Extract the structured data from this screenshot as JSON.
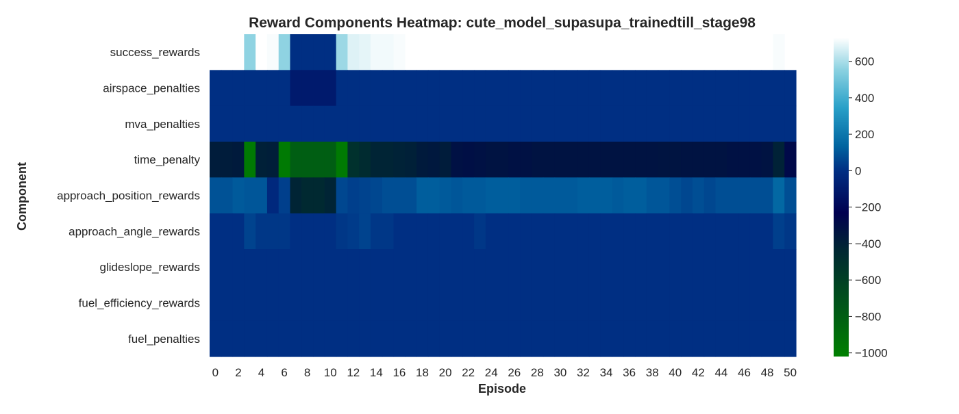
{
  "chart_data": {
    "type": "heatmap",
    "title": "Reward Components Heatmap: cute_model_supasupa_trainedtill_stage98",
    "xlabel": "Episode",
    "ylabel": "Component",
    "rows": [
      "success_rewards",
      "airspace_penalties",
      "mva_penalties",
      "time_penalty",
      "approach_position_rewards",
      "approach_angle_rewards",
      "glideslope_rewards",
      "fuel_efficiency_rewards",
      "fuel_penalties"
    ],
    "x_ticks": [
      "0",
      "2",
      "4",
      "6",
      "8",
      "10",
      "12",
      "14",
      "16",
      "18",
      "20",
      "22",
      "24",
      "26",
      "28",
      "30",
      "32",
      "34",
      "36",
      "38",
      "40",
      "42",
      "44",
      "46",
      "48",
      "50"
    ],
    "episodes": [
      0,
      1,
      2,
      3,
      4,
      5,
      6,
      7,
      8,
      9,
      10,
      11,
      12,
      13,
      14,
      15,
      16,
      17,
      18,
      19,
      20,
      21,
      22,
      23,
      24,
      25,
      26,
      27,
      28,
      29,
      30,
      31,
      32,
      33,
      34,
      35,
      36,
      37,
      38,
      39,
      40,
      41,
      42,
      43,
      44,
      45,
      46,
      47,
      48,
      49,
      50
    ],
    "values": [
      [
        null,
        null,
        null,
        560,
        730,
        720,
        560,
        0,
        0,
        0,
        0,
        580,
        680,
        690,
        710,
        710,
        720,
        730,
        730,
        735,
        735,
        null,
        null,
        null,
        null,
        null,
        null,
        null,
        null,
        null,
        null,
        null,
        null,
        null,
        null,
        null,
        null,
        null,
        null,
        null,
        null,
        null,
        null,
        null,
        null,
        null,
        null,
        null,
        null,
        720,
        null
      ],
      [
        0,
        0,
        0,
        0,
        0,
        0,
        0,
        -100,
        -100,
        -100,
        -100,
        0,
        0,
        0,
        0,
        0,
        0,
        0,
        0,
        0,
        0,
        0,
        0,
        0,
        0,
        0,
        0,
        0,
        0,
        0,
        0,
        0,
        0,
        0,
        0,
        0,
        0,
        0,
        0,
        0,
        0,
        0,
        0,
        0,
        0,
        0,
        0,
        0,
        0,
        0,
        0
      ],
      [
        0,
        0,
        0,
        0,
        0,
        0,
        0,
        0,
        0,
        0,
        0,
        0,
        0,
        0,
        0,
        0,
        0,
        0,
        0,
        0,
        0,
        0,
        0,
        0,
        0,
        0,
        0,
        0,
        0,
        0,
        0,
        0,
        0,
        0,
        0,
        0,
        0,
        0,
        0,
        0,
        0,
        0,
        0,
        0,
        0,
        0,
        0,
        0,
        0,
        0,
        0
      ],
      [
        -380,
        -380,
        -370,
        -980,
        -400,
        -390,
        -980,
        -800,
        -800,
        -800,
        -800,
        -980,
        -500,
        -460,
        -420,
        -420,
        -410,
        -400,
        -370,
        -360,
        -380,
        -320,
        -310,
        -320,
        -330,
        -330,
        -320,
        -320,
        -330,
        -330,
        -330,
        -330,
        -330,
        -330,
        -330,
        -330,
        -330,
        -330,
        -330,
        -340,
        -340,
        -330,
        -330,
        -330,
        -330,
        -320,
        -320,
        -320,
        -330,
        -410,
        -280
      ],
      [
        90,
        90,
        110,
        100,
        100,
        -30,
        40,
        -420,
        -450,
        -450,
        -420,
        60,
        40,
        50,
        60,
        80,
        80,
        80,
        120,
        120,
        110,
        100,
        110,
        110,
        120,
        120,
        120,
        110,
        110,
        110,
        110,
        110,
        120,
        120,
        120,
        110,
        120,
        120,
        100,
        100,
        80,
        60,
        80,
        60,
        80,
        80,
        80,
        80,
        80,
        150,
        80
      ],
      [
        0,
        0,
        0,
        50,
        20,
        20,
        20,
        0,
        0,
        0,
        0,
        20,
        30,
        50,
        20,
        20,
        0,
        0,
        0,
        0,
        0,
        0,
        0,
        20,
        0,
        0,
        0,
        0,
        0,
        0,
        0,
        0,
        0,
        0,
        0,
        0,
        0,
        0,
        0,
        0,
        0,
        0,
        0,
        0,
        0,
        0,
        0,
        0,
        0,
        40,
        20
      ],
      [
        0,
        0,
        0,
        0,
        0,
        0,
        0,
        0,
        0,
        0,
        0,
        0,
        0,
        0,
        0,
        0,
        0,
        0,
        0,
        0,
        0,
        0,
        0,
        0,
        0,
        0,
        0,
        0,
        0,
        0,
        0,
        0,
        0,
        0,
        0,
        0,
        0,
        0,
        0,
        0,
        0,
        0,
        0,
        0,
        0,
        0,
        0,
        0,
        0,
        0,
        0
      ],
      [
        0,
        0,
        0,
        0,
        0,
        0,
        0,
        0,
        0,
        0,
        0,
        0,
        0,
        0,
        0,
        0,
        0,
        0,
        0,
        0,
        0,
        0,
        0,
        0,
        0,
        0,
        0,
        0,
        0,
        0,
        0,
        0,
        0,
        0,
        0,
        0,
        0,
        0,
        0,
        0,
        0,
        0,
        0,
        0,
        0,
        0,
        0,
        0,
        0,
        0,
        0
      ],
      [
        0,
        0,
        0,
        0,
        0,
        0,
        0,
        0,
        0,
        0,
        0,
        0,
        0,
        0,
        0,
        0,
        0,
        0,
        0,
        0,
        0,
        0,
        0,
        0,
        0,
        0,
        0,
        0,
        0,
        0,
        0,
        0,
        0,
        0,
        0,
        0,
        0,
        0,
        0,
        0,
        0,
        0,
        0,
        0,
        0,
        0,
        0,
        0,
        0,
        0,
        0
      ]
    ],
    "vmin": -1020,
    "vmax": 730,
    "colormap": "ocean",
    "colorbar_ticks": [
      "600",
      "400",
      "200",
      "0",
      "−200",
      "−400",
      "−600",
      "−800",
      "−1000"
    ],
    "grid": false,
    "legend": "colorbar-right"
  }
}
